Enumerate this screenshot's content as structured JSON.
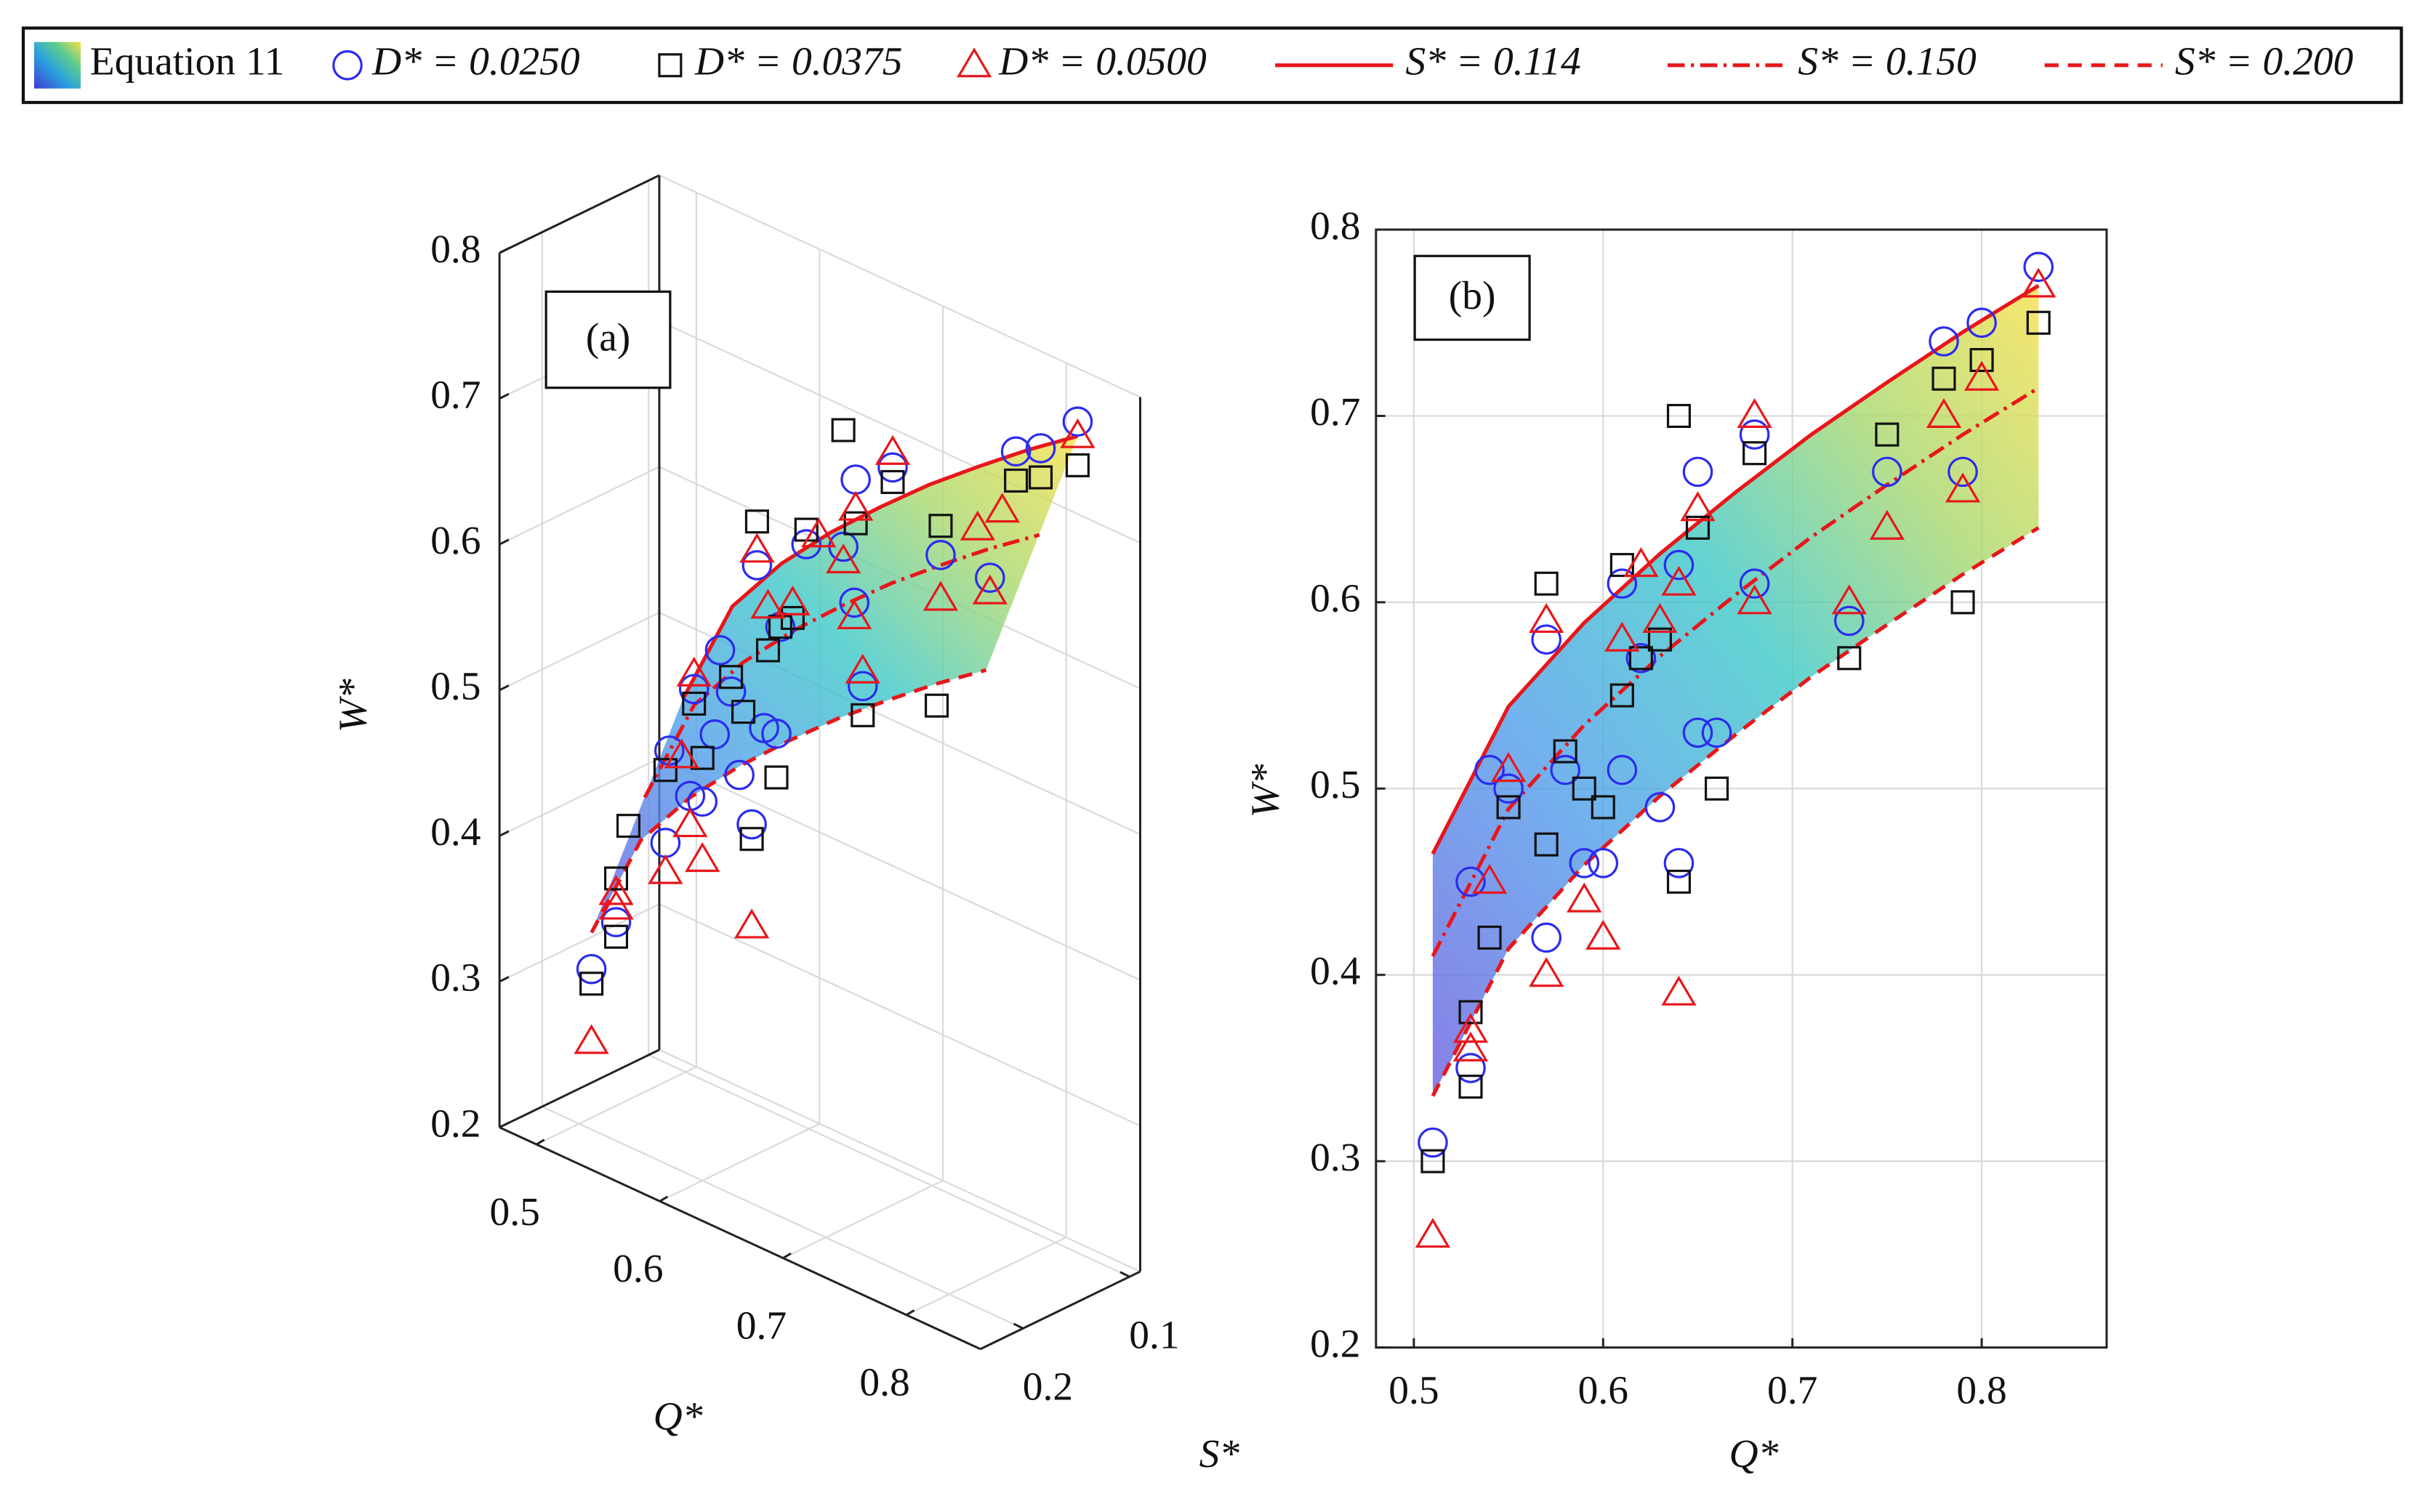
{
  "chart_data": [
    {
      "type": "scatter3d",
      "panel_label": "(a)",
      "xlabel": "Q*",
      "ylabel": "S*",
      "zlabel": "W*",
      "xlim": [
        0.47,
        0.86
      ],
      "xticks": [
        0.5,
        0.6,
        0.7,
        0.8
      ],
      "ylim": [
        0.09,
        0.24
      ],
      "yticks": [
        0.1,
        0.2
      ],
      "zlim": [
        0.2,
        0.8
      ],
      "zticks": [
        0.2,
        0.3,
        0.4,
        0.5,
        0.6,
        0.7,
        0.8
      ],
      "grid": true,
      "series": [
        {
          "color": "#2b2bf0",
          "marker": "circle",
          "x": [
            0.83,
            0.8,
            0.78,
            0.79,
            0.75,
            0.73,
            0.68,
            0.68,
            0.65,
            0.64,
            0.61,
            0.62,
            0.61,
            0.63,
            0.65,
            0.66,
            0.64,
            0.6,
            0.59,
            0.57,
            0.58,
            0.57,
            0.54,
            0.55,
            0.53,
            0.53,
            0.51
          ],
          "y": [
            0.114,
            0.114,
            0.114,
            0.15,
            0.15,
            0.2,
            0.15,
            0.114,
            0.114,
            0.114,
            0.114,
            0.15,
            0.2,
            0.2,
            0.2,
            0.2,
            0.2,
            0.2,
            0.2,
            0.114,
            0.15,
            0.2,
            0.114,
            0.15,
            0.15,
            0.2,
            0.2
          ],
          "z": [
            0.78,
            0.75,
            0.74,
            0.67,
            0.67,
            0.59,
            0.61,
            0.69,
            0.67,
            0.62,
            0.61,
            0.57,
            0.51,
            0.49,
            0.53,
            0.53,
            0.46,
            0.46,
            0.46,
            0.58,
            0.51,
            0.42,
            0.51,
            0.5,
            0.45,
            0.35,
            0.31
          ]
        },
        {
          "color": "#111111",
          "marker": "square",
          "x": [
            0.83,
            0.78,
            0.8,
            0.75,
            0.79,
            0.73,
            0.68,
            0.64,
            0.65,
            0.61,
            0.62,
            0.63,
            0.61,
            0.66,
            0.64,
            0.57,
            0.58,
            0.59,
            0.6,
            0.57,
            0.55,
            0.54,
            0.53,
            0.53,
            0.51
          ],
          "y": [
            0.114,
            0.114,
            0.114,
            0.15,
            0.2,
            0.2,
            0.114,
            0.114,
            0.114,
            0.114,
            0.15,
            0.15,
            0.15,
            0.2,
            0.2,
            0.114,
            0.15,
            0.15,
            0.2,
            0.2,
            0.15,
            0.2,
            0.2,
            0.2,
            0.2
          ],
          "z": [
            0.75,
            0.72,
            0.73,
            0.69,
            0.6,
            0.57,
            0.68,
            0.7,
            0.64,
            0.62,
            0.57,
            0.58,
            0.55,
            0.5,
            0.45,
            0.61,
            0.52,
            0.5,
            0.49,
            0.47,
            0.49,
            0.42,
            0.38,
            0.34,
            0.3
          ]
        },
        {
          "color": "#e8161b",
          "marker": "triangle",
          "x": [
            0.83,
            0.8,
            0.78,
            0.79,
            0.75,
            0.73,
            0.68,
            0.68,
            0.65,
            0.64,
            0.62,
            0.61,
            0.63,
            0.57,
            0.55,
            0.54,
            0.59,
            0.6,
            0.57,
            0.64,
            0.53,
            0.53,
            0.51
          ],
          "y": [
            0.114,
            0.15,
            0.15,
            0.15,
            0.15,
            0.2,
            0.114,
            0.15,
            0.114,
            0.114,
            0.114,
            0.15,
            0.15,
            0.114,
            0.15,
            0.15,
            0.2,
            0.2,
            0.2,
            0.2,
            0.2,
            0.2,
            0.2
          ],
          "z": [
            0.77,
            0.72,
            0.7,
            0.66,
            0.64,
            0.6,
            0.7,
            0.6,
            0.65,
            0.61,
            0.62,
            0.58,
            0.59,
            0.59,
            0.51,
            0.45,
            0.44,
            0.42,
            0.4,
            0.39,
            0.37,
            0.36,
            0.26
          ]
        }
      ],
      "curves": [
        {
          "s": 0.114,
          "color": "#e8161b",
          "dash": "solid",
          "x": [
            0.51,
            0.55,
            0.59,
            0.63,
            0.67,
            0.71,
            0.75,
            0.79,
            0.83
          ],
          "values": [
            0.465,
            0.544,
            0.589,
            0.626,
            0.659,
            0.69,
            0.718,
            0.745,
            0.77
          ]
        },
        {
          "s": 0.15,
          "color": "#e8161b",
          "dash": "dashdot",
          "x": [
            0.51,
            0.55,
            0.59,
            0.63,
            0.67,
            0.71,
            0.75,
            0.79,
            0.83
          ],
          "values": [
            0.41,
            0.489,
            0.534,
            0.571,
            0.604,
            0.635,
            0.663,
            0.69,
            0.715
          ]
        },
        {
          "s": 0.2,
          "color": "#e8161b",
          "dash": "dashed",
          "x": [
            0.51,
            0.55,
            0.59,
            0.63,
            0.67,
            0.71,
            0.75,
            0.79,
            0.83
          ],
          "values": [
            0.335,
            0.414,
            0.459,
            0.496,
            0.529,
            0.56,
            0.588,
            0.615,
            0.64
          ]
        }
      ]
    },
    {
      "type": "scatter",
      "panel_label": "(b)",
      "xlabel": "Q*",
      "ylabel": "W*",
      "surface_name": "Equation 11",
      "xlim": [
        0.48,
        0.866
      ],
      "xticks": [
        0.5,
        0.6,
        0.7,
        0.8
      ],
      "ylim": [
        0.2,
        0.8
      ],
      "yticks": [
        0.2,
        0.3,
        0.4,
        0.5,
        0.6,
        0.7,
        0.8
      ],
      "grid": true,
      "series": [
        {
          "name": "D* = 0.0250",
          "color": "#2b2bf0",
          "marker": "circle",
          "x": [
            0.83,
            0.8,
            0.78,
            0.79,
            0.75,
            0.73,
            0.68,
            0.68,
            0.65,
            0.64,
            0.61,
            0.62,
            0.61,
            0.63,
            0.65,
            0.66,
            0.64,
            0.6,
            0.59,
            0.57,
            0.58,
            0.57,
            0.54,
            0.55,
            0.53,
            0.53,
            0.51
          ],
          "values": [
            0.78,
            0.75,
            0.74,
            0.67,
            0.67,
            0.59,
            0.61,
            0.69,
            0.67,
            0.62,
            0.61,
            0.57,
            0.51,
            0.49,
            0.53,
            0.53,
            0.46,
            0.46,
            0.46,
            0.58,
            0.51,
            0.42,
            0.51,
            0.5,
            0.45,
            0.35,
            0.31
          ]
        },
        {
          "name": "D* = 0.0375",
          "color": "#111111",
          "marker": "square",
          "x": [
            0.83,
            0.78,
            0.8,
            0.75,
            0.79,
            0.73,
            0.68,
            0.64,
            0.65,
            0.61,
            0.62,
            0.63,
            0.61,
            0.66,
            0.64,
            0.57,
            0.58,
            0.59,
            0.6,
            0.57,
            0.55,
            0.54,
            0.53,
            0.53,
            0.51
          ],
          "values": [
            0.75,
            0.72,
            0.73,
            0.69,
            0.6,
            0.57,
            0.68,
            0.7,
            0.64,
            0.62,
            0.57,
            0.58,
            0.55,
            0.5,
            0.45,
            0.61,
            0.52,
            0.5,
            0.49,
            0.47,
            0.49,
            0.42,
            0.38,
            0.34,
            0.3
          ]
        },
        {
          "name": "D* = 0.0500",
          "color": "#e8161b",
          "marker": "triangle",
          "x": [
            0.83,
            0.8,
            0.78,
            0.79,
            0.75,
            0.73,
            0.68,
            0.68,
            0.65,
            0.64,
            0.62,
            0.61,
            0.63,
            0.57,
            0.55,
            0.54,
            0.59,
            0.6,
            0.57,
            0.64,
            0.53,
            0.53,
            0.51
          ],
          "values": [
            0.77,
            0.72,
            0.7,
            0.66,
            0.64,
            0.6,
            0.7,
            0.6,
            0.65,
            0.61,
            0.62,
            0.58,
            0.59,
            0.59,
            0.51,
            0.45,
            0.44,
            0.42,
            0.4,
            0.39,
            0.37,
            0.36,
            0.26
          ]
        }
      ],
      "curves": [
        {
          "name": "S* = 0.114",
          "color": "#e8161b",
          "dash": "solid",
          "x": [
            0.51,
            0.55,
            0.59,
            0.63,
            0.67,
            0.71,
            0.75,
            0.79,
            0.83
          ],
          "values": [
            0.465,
            0.544,
            0.589,
            0.626,
            0.659,
            0.69,
            0.718,
            0.745,
            0.77
          ]
        },
        {
          "name": "S* = 0.150",
          "color": "#e8161b",
          "dash": "dashdot",
          "x": [
            0.51,
            0.55,
            0.59,
            0.63,
            0.67,
            0.71,
            0.75,
            0.79,
            0.83
          ],
          "values": [
            0.41,
            0.489,
            0.534,
            0.571,
            0.604,
            0.635,
            0.663,
            0.69,
            0.715
          ]
        },
        {
          "name": "S* = 0.200",
          "color": "#e8161b",
          "dash": "dashed",
          "x": [
            0.51,
            0.55,
            0.59,
            0.63,
            0.67,
            0.71,
            0.75,
            0.79,
            0.83
          ],
          "values": [
            0.335,
            0.414,
            0.459,
            0.496,
            0.529,
            0.56,
            0.588,
            0.615,
            0.64
          ]
        }
      ]
    }
  ]
}
